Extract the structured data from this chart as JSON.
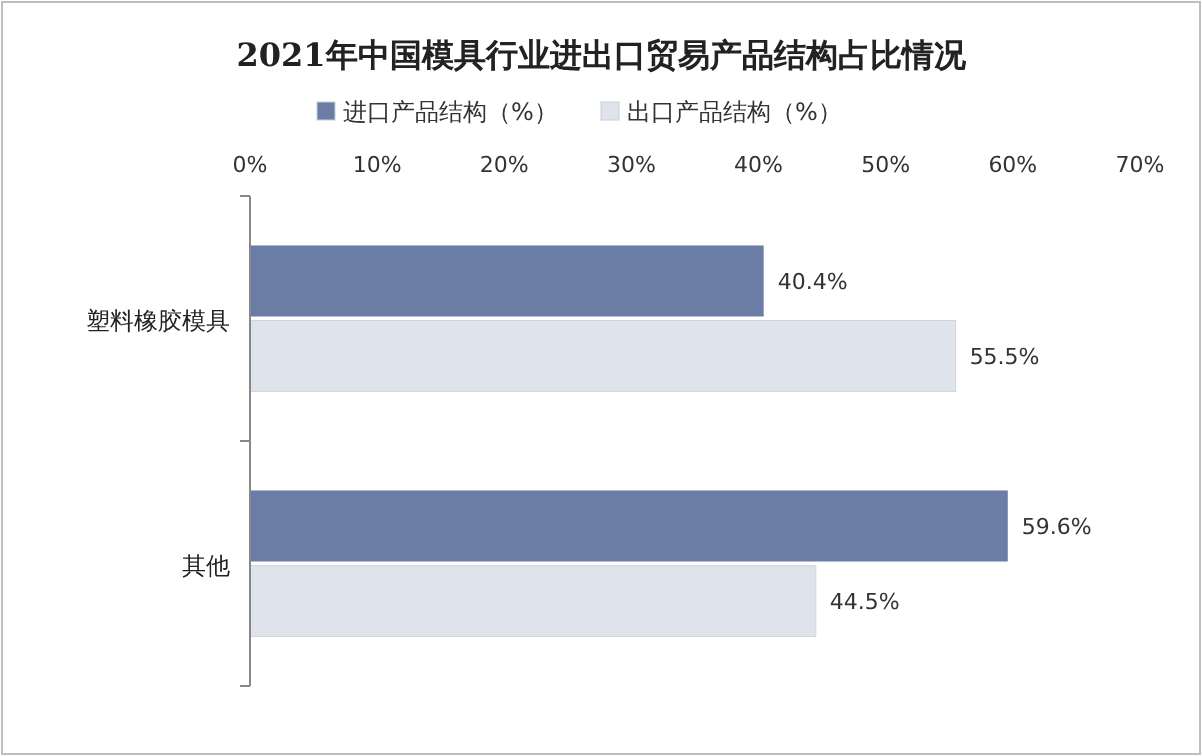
{
  "chart_data": {
    "type": "bar",
    "orientation": "horizontal",
    "title": "2021年中国模具行业进出口贸易产品结构占比情况",
    "categories": [
      "塑料橡胶模具",
      "其他"
    ],
    "series": [
      {
        "name": "进口产品结构（%）",
        "color": "#6b7ca5",
        "values": [
          40.4,
          59.6
        ],
        "value_labels": [
          "40.4%",
          "59.6%"
        ]
      },
      {
        "name": "出口产品结构（%）",
        "color": "#dfe3ec",
        "values": [
          55.5,
          44.5
        ],
        "value_labels": [
          "55.5%",
          "44.5%"
        ]
      }
    ],
    "xlim": [
      0,
      70
    ],
    "xticks": [
      {
        "value": 0,
        "label": "0%"
      },
      {
        "value": 10,
        "label": "10%"
      },
      {
        "value": 20,
        "label": "20%"
      },
      {
        "value": 30,
        "label": "30%"
      },
      {
        "value": 40,
        "label": "40%"
      },
      {
        "value": 50,
        "label": "50%"
      },
      {
        "value": 60,
        "label": "60%"
      },
      {
        "value": 70,
        "label": "70%"
      }
    ],
    "legend": "top",
    "grid": false
  }
}
